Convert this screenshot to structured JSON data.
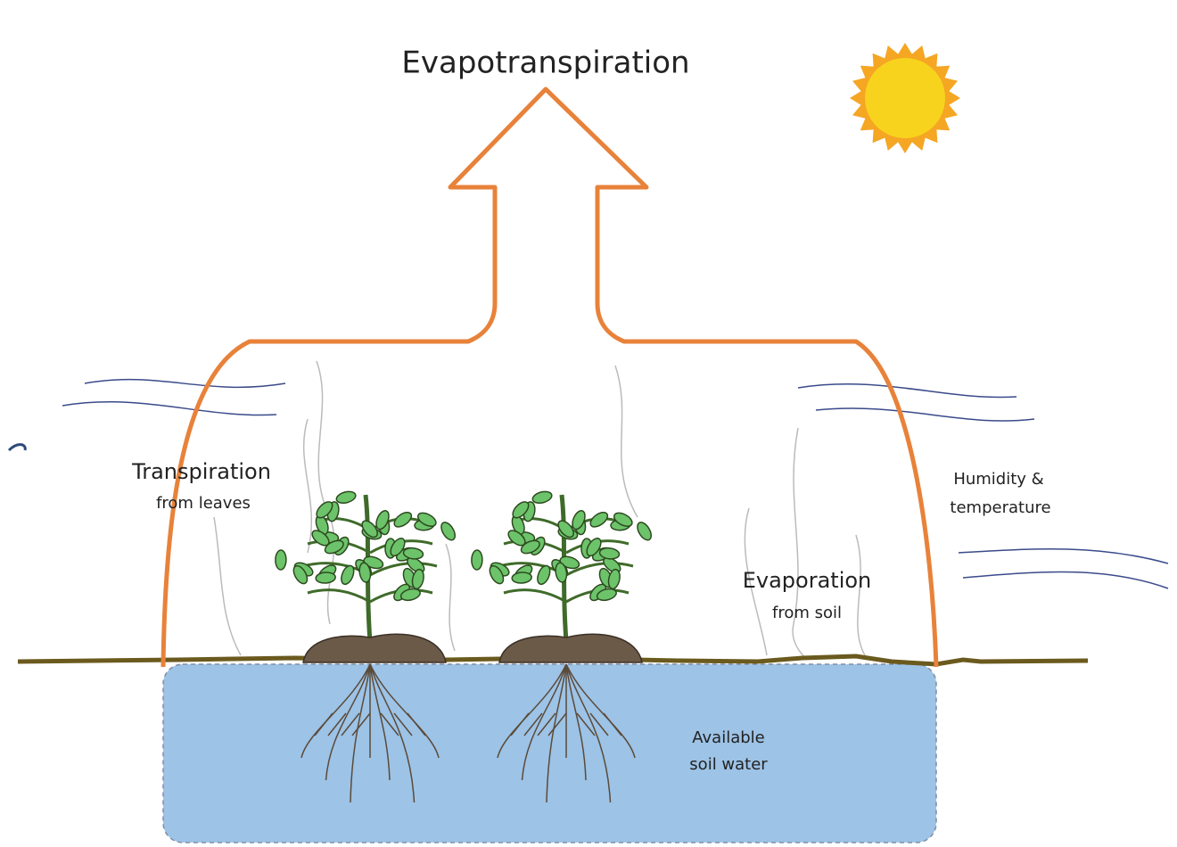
{
  "title": "Evapotranspiration",
  "labels": {
    "transpiration": {
      "title": "Transpiration",
      "subtitle": "from leaves"
    },
    "climate": {
      "line1": "Humidity &",
      "line2": "temperature"
    },
    "evaporation": {
      "title": "Evaporation",
      "subtitle": "from soil"
    },
    "soil_water": {
      "line1": "Available",
      "line2": "soil water"
    }
  }
}
